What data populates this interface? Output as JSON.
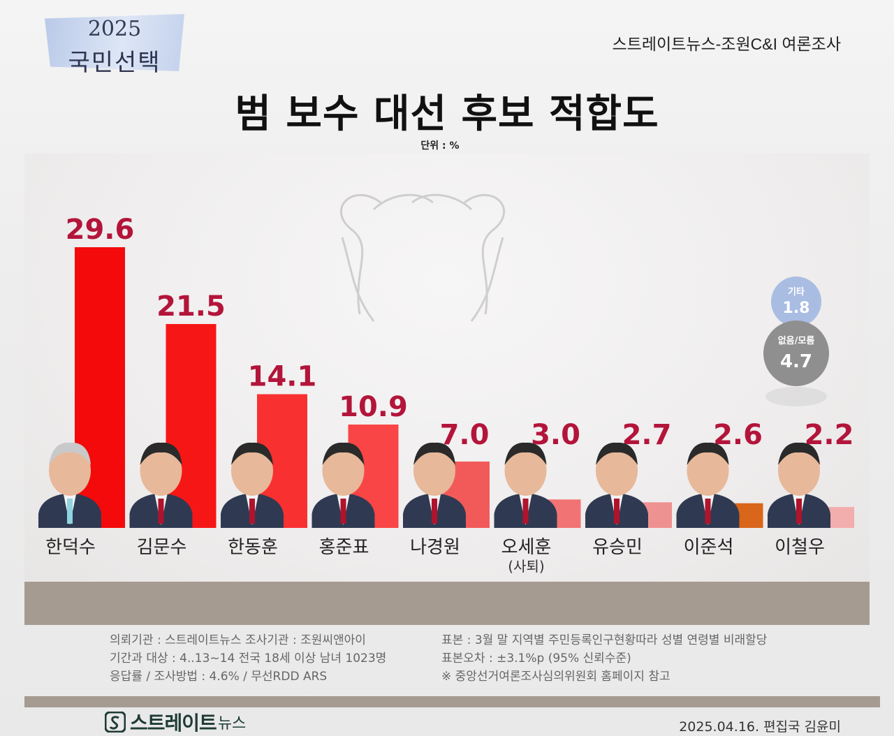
{
  "banner": {
    "year": "2025",
    "subtitle": "국민선택"
  },
  "source": "스트레이트뉴스-조원C&I 여론조사",
  "title": "범 보수 대선 후보 적합도",
  "unit": "단위 : %",
  "chart_data": {
    "type": "bar",
    "title": "범 보수 대선 후보 적합도",
    "ylabel": "",
    "xlabel": "",
    "unit": "%",
    "ylim": [
      0,
      30
    ],
    "grid": false,
    "categories": [
      "한덕수",
      "김문수",
      "한동훈",
      "홍준표",
      "나경원",
      "오세훈",
      "유승민",
      "이준석",
      "이철우"
    ],
    "category_notes": [
      "",
      "",
      "",
      "",
      "",
      "(사퇴)",
      "",
      "",
      ""
    ],
    "values": [
      29.6,
      21.5,
      14.1,
      10.9,
      7.0,
      3.0,
      2.7,
      2.6,
      2.2
    ],
    "value_labels": [
      "29.6",
      "21.5",
      "14.1",
      "10.9",
      "7.0",
      "3.0",
      "2.7",
      "2.6",
      "2.2"
    ],
    "bar_colors": [
      "#f40a0a",
      "#f71616",
      "#f93030",
      "#f94545",
      "#f25a5a",
      "#f27373",
      "#f09191",
      "#d9661a",
      "#f2adad"
    ],
    "extra": [
      {
        "label": "기타",
        "value": 1.8,
        "value_label": "1.8",
        "color": "#a9bde3"
      },
      {
        "label": "없음/모름",
        "value": 4.7,
        "value_label": "4.7",
        "color": "#8f8f8f"
      }
    ]
  },
  "colors": {
    "value_label": "#b3153a",
    "band": "#a59b91"
  },
  "notes": {
    "left": [
      "의뢰기관 : 스트레이트뉴스  조사기관 : 조원씨앤아이",
      "기간과 대상 : 4..13~14 전국 18세 이상 남녀 1023명",
      "응답률 / 조사방법 : 4.6% / 무선RDD ARS"
    ],
    "right": [
      "표본 : 3월 말 지역별 주민등록인구현황따라 성별 연령별 비래할당",
      "표본오차 : ±3.1%p (95% 신뢰수준)",
      "※ 중앙선거여론조사심의위원회 홈페이지 참고"
    ]
  },
  "footer": {
    "logo_main": "스트레이트",
    "logo_sub": "뉴스",
    "date": "2025.04.16. 편집국 김윤미"
  }
}
